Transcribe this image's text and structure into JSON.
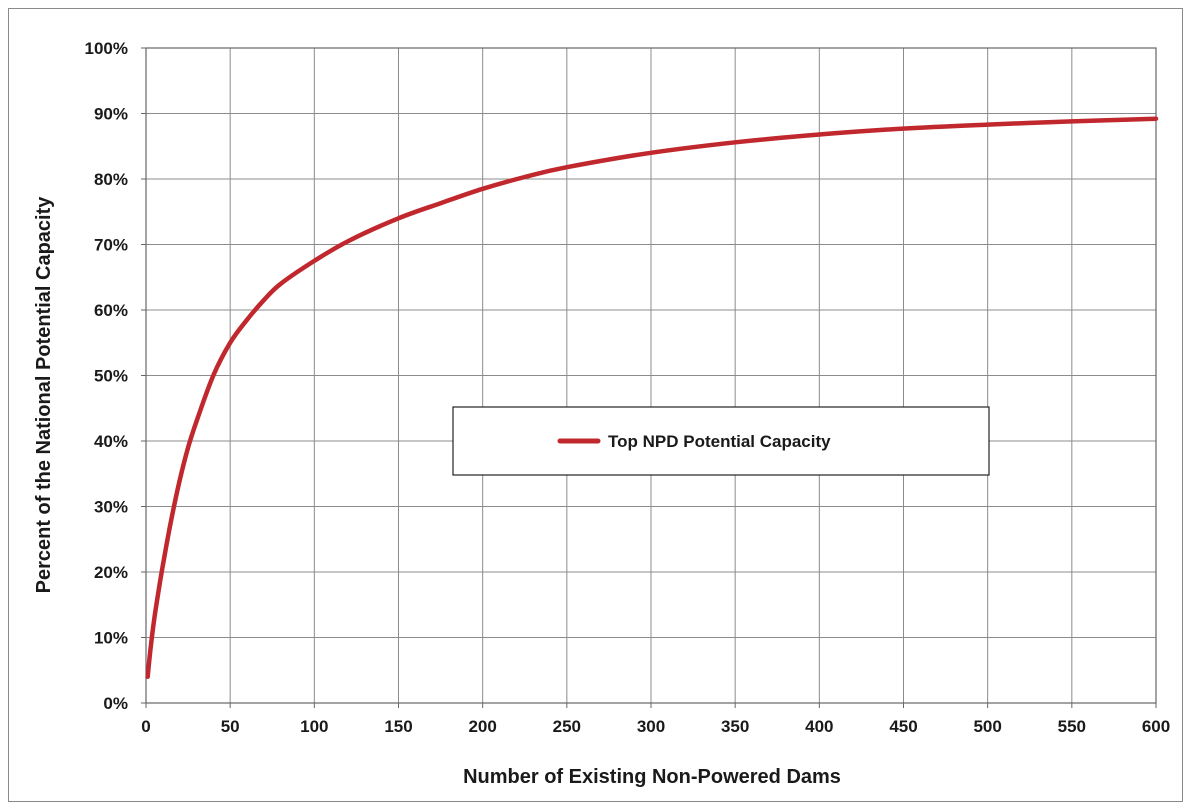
{
  "chart_data": {
    "type": "line",
    "xlabel": "Number of Existing Non-Powered Dams",
    "ylabel": "Percent of the National Potential Capacity",
    "xlim": [
      0,
      600
    ],
    "ylim": [
      0,
      100
    ],
    "x_ticks": [
      "0",
      "50",
      "100",
      "150",
      "200",
      "250",
      "300",
      "350",
      "400",
      "450",
      "500",
      "550",
      "600"
    ],
    "y_ticks": [
      "0%",
      "10%",
      "20%",
      "30%",
      "40%",
      "50%",
      "60%",
      "70%",
      "80%",
      "90%",
      "100%"
    ],
    "grid": true,
    "legend_position": "center",
    "series": [
      {
        "name": "Top NPD Potential Capacity",
        "color": "#c0282e",
        "x": [
          1,
          3,
          5,
          8,
          10,
          15,
          20,
          25,
          30,
          40,
          50,
          60,
          70,
          80,
          100,
          120,
          150,
          175,
          200,
          225,
          250,
          300,
          350,
          400,
          450,
          500,
          550,
          600
        ],
        "y": [
          4,
          9,
          13,
          18,
          21,
          28,
          34,
          39,
          43,
          50,
          55,
          58.5,
          61.5,
          64,
          67.5,
          70.5,
          74,
          76.3,
          78.5,
          80.3,
          81.8,
          84,
          85.6,
          86.8,
          87.7,
          88.3,
          88.8,
          89.2
        ]
      }
    ]
  }
}
